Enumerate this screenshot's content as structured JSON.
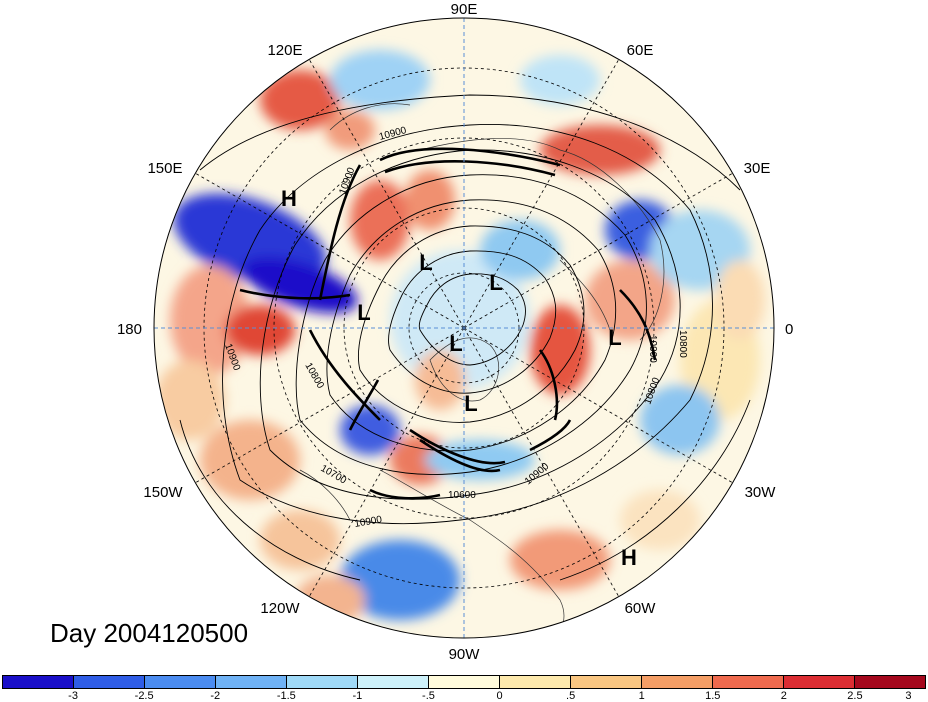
{
  "map": {
    "projection": "polar-stereographic-north",
    "longitude_labels": [
      "90E",
      "60E",
      "30E",
      "0",
      "30W",
      "60W",
      "90W",
      "120W",
      "150W",
      "180",
      "150E",
      "120E"
    ],
    "contour_labels": [
      "10900",
      "10900",
      "10900",
      "10900",
      "10800",
      "10800",
      "10800",
      "10700",
      "10600",
      "10900",
      "10900"
    ],
    "pressure_centers": [
      "H",
      "H",
      "L",
      "L",
      "L",
      "L",
      "L",
      "L"
    ],
    "day_label": "Day 2004120500"
  },
  "colorbar": {
    "colors": [
      "#1a0fc9",
      "#2f5de6",
      "#4b8cf0",
      "#6fb2f5",
      "#9fd9f7",
      "#cdf1fa",
      "#fffbdc",
      "#fde9ad",
      "#f9c682",
      "#f49e66",
      "#ef6a4e",
      "#dc2d33",
      "#a5081d"
    ],
    "tick_labels": [
      "-3",
      "-2.5",
      "-2",
      "-1.5",
      "-1",
      "-.5",
      "0",
      ".5",
      "1",
      "1.5",
      "2",
      "2.5",
      "3"
    ]
  }
}
